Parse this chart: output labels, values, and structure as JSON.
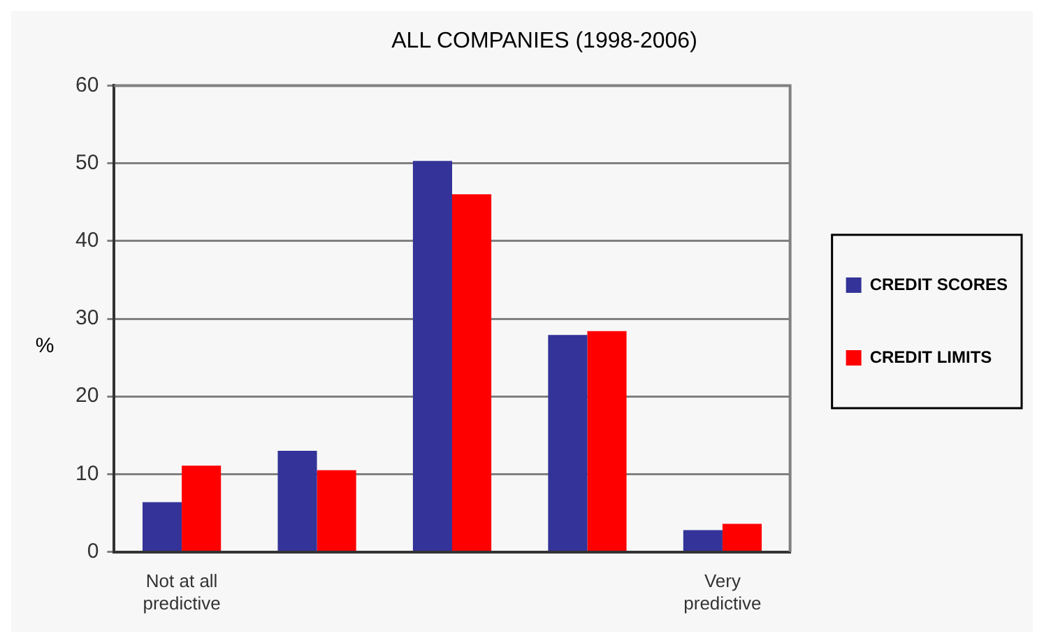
{
  "chart_data": {
    "type": "bar",
    "title": "ALL COMPANIES (1998-2006)",
    "ylabel": "%",
    "categories": [
      "Not at all predictive",
      null,
      null,
      null,
      "Very predictive"
    ],
    "series": [
      {
        "name": "CREDIT SCORES",
        "color": "#333399",
        "values": [
          6.4,
          13.0,
          50.3,
          27.9,
          2.8
        ]
      },
      {
        "name": "CREDIT LIMITS",
        "color": "#ff0000",
        "values": [
          11.1,
          10.5,
          46.0,
          28.4,
          3.6
        ]
      }
    ],
    "ylim": [
      0,
      60
    ],
    "yticks": [
      0,
      10,
      20,
      30,
      40,
      50,
      60
    ],
    "grid": "y",
    "legend": "right"
  }
}
